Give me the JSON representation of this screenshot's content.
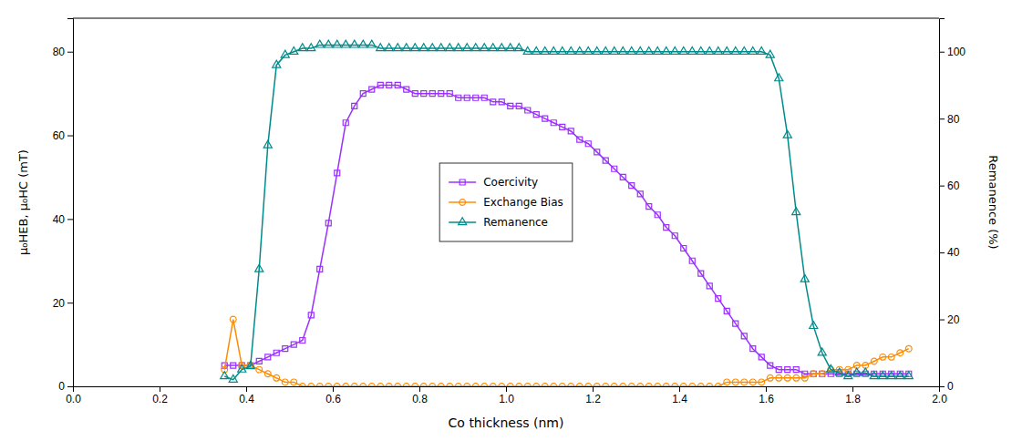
{
  "chart_data": {
    "type": "line",
    "x_label": "Co thickness (nm)",
    "y_label": "μ₀HEB, μ₀HC (mT)",
    "y2_label": "Remanence (%)",
    "x": [
      0.35,
      0.37,
      0.39,
      0.41,
      0.43,
      0.45,
      0.47,
      0.49,
      0.51,
      0.53,
      0.55,
      0.57,
      0.59,
      0.61,
      0.63,
      0.65,
      0.67,
      0.69,
      0.71,
      0.73,
      0.75,
      0.77,
      0.79,
      0.81,
      0.83,
      0.85,
      0.87,
      0.89,
      0.91,
      0.93,
      0.95,
      0.97,
      0.99,
      1.01,
      1.03,
      1.05,
      1.07,
      1.09,
      1.11,
      1.13,
      1.15,
      1.17,
      1.19,
      1.21,
      1.23,
      1.25,
      1.27,
      1.29,
      1.31,
      1.33,
      1.35,
      1.37,
      1.39,
      1.41,
      1.43,
      1.45,
      1.47,
      1.49,
      1.51,
      1.53,
      1.55,
      1.57,
      1.59,
      1.61,
      1.63,
      1.65,
      1.67,
      1.69,
      1.71,
      1.73,
      1.75,
      1.77,
      1.79,
      1.81,
      1.83,
      1.85,
      1.87,
      1.89,
      1.91,
      1.93
    ],
    "series": [
      {
        "name": "Coercivity",
        "color": "#9B30FF",
        "marker": "square",
        "line_style": "solid",
        "values": [
          5,
          5,
          5,
          5,
          6,
          7,
          8,
          9,
          10,
          11,
          17,
          28,
          39,
          51,
          63,
          67,
          70,
          71,
          72,
          72,
          72,
          71,
          70,
          70,
          70,
          70,
          70,
          69,
          69,
          69,
          69,
          68,
          68,
          67,
          67,
          66,
          65,
          64,
          63,
          62,
          61,
          59,
          58,
          56,
          54,
          52,
          50,
          48,
          46,
          43,
          41,
          38,
          36,
          33,
          30,
          27,
          24,
          21,
          18,
          15,
          12,
          9,
          7,
          5,
          4,
          4,
          4,
          3,
          3,
          3,
          3,
          3,
          3,
          3,
          3,
          3,
          3,
          3,
          3,
          3
        ]
      },
      {
        "name": "Exchange Bias",
        "color": "#FF8C00",
        "marker": "circle",
        "line_style": "solid",
        "values": [
          4,
          16,
          5,
          5,
          4,
          3,
          2,
          1,
          1,
          0,
          0,
          0,
          0,
          0,
          0,
          0,
          0,
          0,
          0,
          0,
          0,
          0,
          0,
          0,
          0,
          0,
          0,
          0,
          0,
          0,
          0,
          0,
          0,
          0,
          0,
          0,
          0,
          0,
          0,
          0,
          0,
          0,
          0,
          0,
          0,
          0,
          0,
          0,
          0,
          0,
          0,
          0,
          0,
          0,
          0,
          0,
          0,
          0,
          1,
          1,
          1,
          1,
          1,
          2,
          2,
          2,
          2,
          2,
          3,
          3,
          4,
          4,
          4,
          5,
          5,
          6,
          7,
          7,
          8,
          9
        ]
      },
      {
        "name": "Remanence",
        "color": "#008B8B",
        "marker": "triangle-up",
        "line_style": "solid",
        "axis": "y2",
        "values": [
          3,
          2,
          5,
          6,
          35,
          72,
          96,
          99,
          100,
          101,
          101,
          102,
          102,
          102,
          102,
          102,
          102,
          102,
          101,
          101,
          101,
          101,
          101,
          101,
          101,
          101,
          101,
          101,
          101,
          101,
          101,
          101,
          101,
          101,
          101,
          100,
          100,
          100,
          100,
          100,
          100,
          100,
          100,
          100,
          100,
          100,
          100,
          100,
          100,
          100,
          100,
          100,
          100,
          100,
          100,
          100,
          100,
          100,
          100,
          100,
          100,
          100,
          100,
          99,
          92,
          75,
          52,
          32,
          18,
          10,
          5,
          4,
          3,
          4,
          4,
          3,
          3,
          3,
          3,
          3
        ]
      }
    ],
    "xlim": [
      0.0,
      2.0
    ],
    "xticks": [
      {
        "value": 0.0,
        "label": "0.0"
      },
      {
        "value": 0.2,
        "label": "0.2"
      },
      {
        "value": 0.4,
        "label": "0.4"
      },
      {
        "value": 0.6,
        "label": "0.6"
      },
      {
        "value": 0.8,
        "label": "0.8"
      },
      {
        "value": 1.0,
        "label": "1.0"
      },
      {
        "value": 1.2,
        "label": "1.2"
      },
      {
        "value": 1.4,
        "label": "1.4"
      },
      {
        "value": 1.6,
        "label": "1.6"
      },
      {
        "value": 1.8,
        "label": "1.8"
      },
      {
        "value": 2.0,
        "label": "2.0"
      }
    ],
    "ylim": [
      0,
      88
    ],
    "yticks": [
      0,
      20,
      40,
      60,
      80
    ],
    "y2lim": [
      0,
      110
    ],
    "y2ticks": [
      0,
      20,
      40,
      60,
      80,
      100
    ],
    "grid": false,
    "legend": "center"
  }
}
